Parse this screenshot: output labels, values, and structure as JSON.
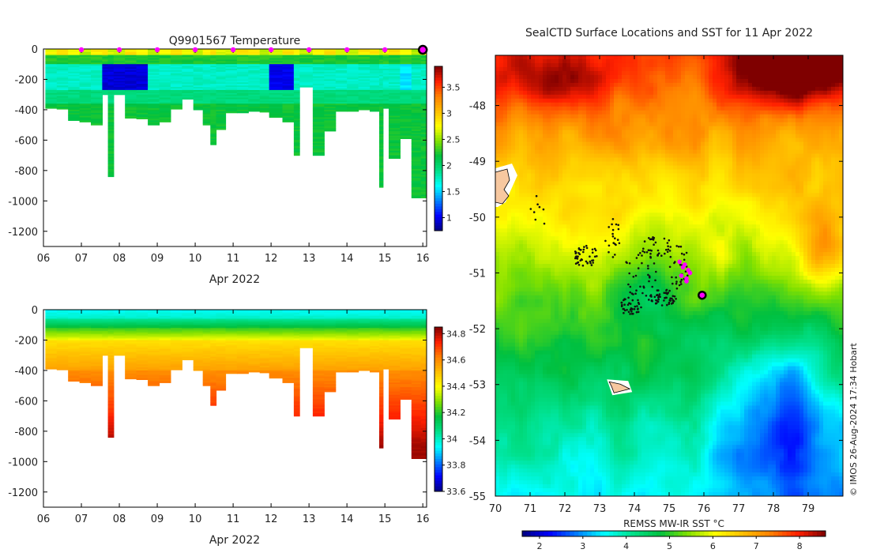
{
  "figure_credit": "© IMOS 26-Aug-2024 17:34 Hobart",
  "colors": {
    "jet": [
      "#00007f",
      "#0000ff",
      "#007fff",
      "#00ffff",
      "#00e08a",
      "#00c040",
      "#80e000",
      "#ffff00",
      "#ffbf00",
      "#ff8000",
      "#ff2000",
      "#7f0000"
    ],
    "marker_magenta": "#ff00ff",
    "track_black": "#111111",
    "land_fill": "#f7c8a0"
  },
  "chart_data": [
    {
      "id": "temperature-section",
      "type": "heatmap",
      "title": "Q9901567  Temperature",
      "xlabel": "Apr 2022",
      "x_ticks": [
        "06",
        "07",
        "08",
        "09",
        "10",
        "11",
        "12",
        "13",
        "14",
        "15",
        "16"
      ],
      "xlim": [
        6,
        16.1
      ],
      "ylim": [
        -1300,
        0
      ],
      "y_ticks": [
        0,
        -200,
        -400,
        -600,
        -800,
        -1000,
        -1200
      ],
      "colorbar": {
        "min": 0.75,
        "max": 3.9,
        "ticks": [
          1,
          1.5,
          2,
          2.5,
          3,
          3.5
        ]
      },
      "dive_days": [
        6.05,
        6.35,
        6.65,
        6.95,
        7.25,
        7.55,
        7.7,
        7.85,
        8.15,
        8.45,
        8.75,
        9.05,
        9.35,
        9.65,
        9.95,
        10.2,
        10.4,
        10.55,
        10.8,
        11.1,
        11.4,
        11.7,
        11.95,
        12.3,
        12.6,
        12.75,
        13.1,
        13.4,
        13.7,
        14.0,
        14.3,
        14.6,
        14.85,
        14.95,
        15.1,
        15.4,
        15.7,
        15.95
      ],
      "dive_max_depth": [
        390,
        395,
        470,
        480,
        500,
        300,
        840,
        300,
        455,
        460,
        500,
        480,
        395,
        330,
        400,
        500,
        630,
        530,
        420,
        420,
        410,
        415,
        450,
        480,
        700,
        250,
        700,
        540,
        410,
        410,
        400,
        410,
        910,
        390,
        720,
        590,
        980,
        980
      ],
      "surface_marker_days": [
        7,
        8,
        9,
        10,
        11,
        12,
        13,
        14,
        15
      ],
      "last_position_day": 16.0
    },
    {
      "id": "salinity-section",
      "type": "heatmap",
      "title": "",
      "xlabel": "Apr 2022",
      "x_ticks": [
        "06",
        "07",
        "08",
        "09",
        "10",
        "11",
        "12",
        "13",
        "14",
        "15",
        "16"
      ],
      "xlim": [
        6,
        16.1
      ],
      "ylim": [
        -1300,
        0
      ],
      "y_ticks": [
        0,
        -200,
        -400,
        -600,
        -800,
        -1000,
        -1200
      ],
      "colorbar": {
        "min": 33.6,
        "max": 34.85,
        "ticks": [
          33.6,
          33.8,
          34,
          34.2,
          34.4,
          34.6,
          34.8
        ]
      }
    },
    {
      "id": "sst-map",
      "type": "heatmap",
      "title": "SealCTD Surface Locations and SST for 11 Apr 2022",
      "xlim": [
        70,
        80
      ],
      "ylim": [
        -55,
        -47.1
      ],
      "x_ticks": [
        70,
        71,
        72,
        73,
        74,
        75,
        76,
        77,
        78,
        79
      ],
      "y_ticks": [
        -48,
        -49,
        -50,
        -51,
        -52,
        -53,
        -54,
        -55
      ],
      "colorbar": {
        "label": "REMSS MW-IR SST °C",
        "min": 1.6,
        "max": 8.6,
        "ticks": [
          2,
          3,
          4,
          5,
          6,
          7,
          8
        ]
      },
      "recent_positions": [
        [
          75.45,
          -50.85
        ],
        [
          75.4,
          -50.9
        ],
        [
          75.55,
          -50.95
        ],
        [
          75.35,
          -51.05
        ],
        [
          75.5,
          -51.1
        ],
        [
          75.6,
          -51.0
        ],
        [
          75.3,
          -50.8
        ],
        [
          75.5,
          -51.15
        ]
      ],
      "last_position": [
        75.95,
        -51.4
      ],
      "island_lon_lat": [
        73.55,
        -53.05
      ]
    }
  ]
}
